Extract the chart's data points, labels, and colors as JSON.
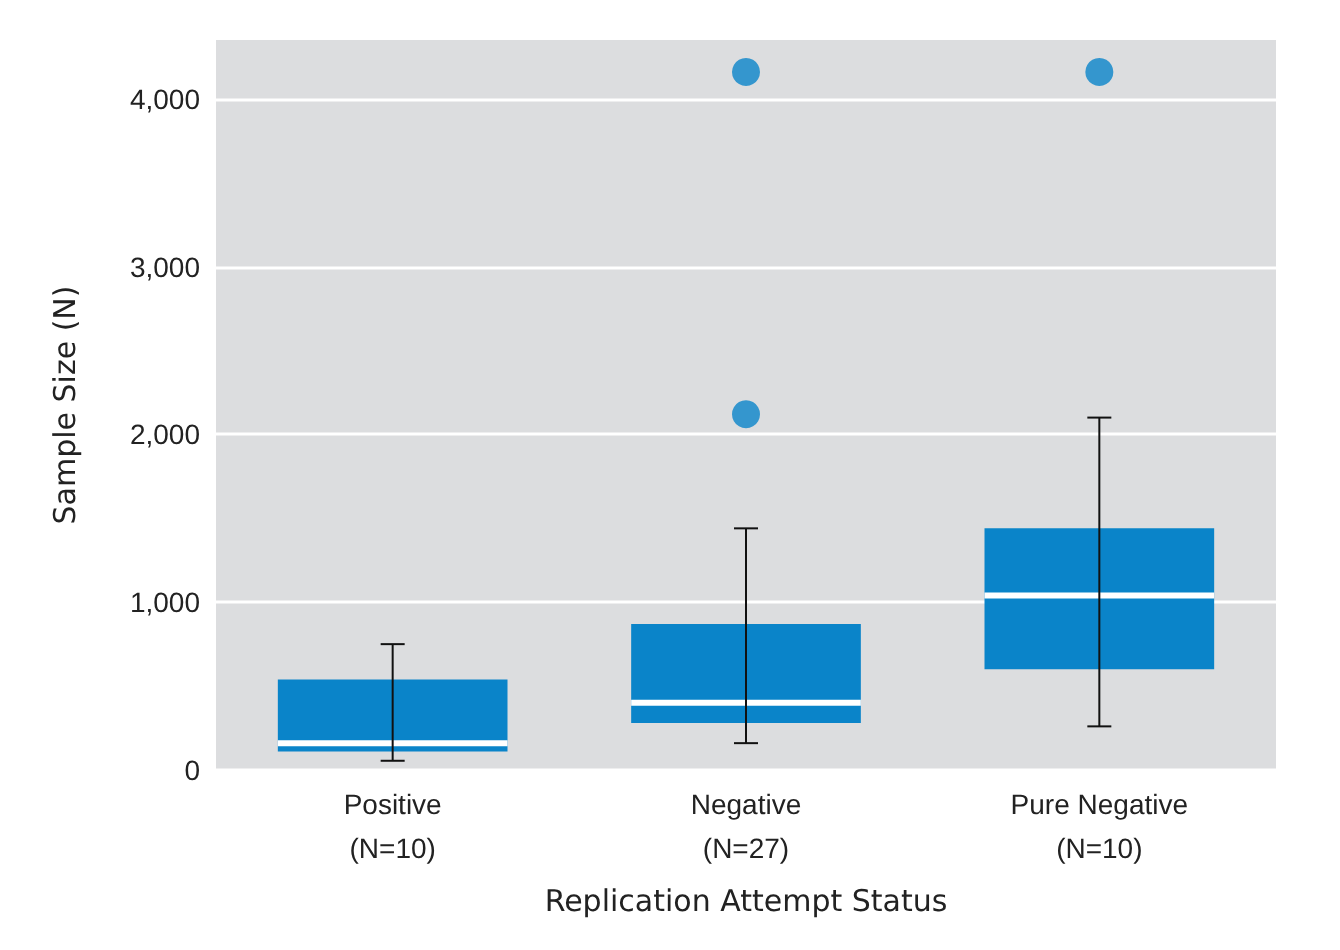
{
  "chart_data": {
    "type": "box",
    "categories": [
      "Positive\n(N=10)",
      "Negative\n(N=27)",
      "Pure Negative\n(N=10)"
    ],
    "xlabel": "Replication Attempt Status",
    "ylabel": "Sample Size (N)",
    "series": [
      {
        "color": "#0a84c9",
        "boxes": [
          {
            "low": 55,
            "q1": 110,
            "median": 160,
            "q3": 540,
            "high": 750
          },
          {
            "low": 160,
            "q1": 280,
            "median": 400,
            "q3": 870,
            "high": 1440,
            "outliers": [
              2120,
              4160
            ]
          },
          {
            "low": 260,
            "q1": 600,
            "median": 1040,
            "q3": 1440,
            "high": 2100,
            "outliers": [
              4160
            ]
          }
        ]
      }
    ],
    "ylim": [
      0,
      4350
    ],
    "yticks": [
      0,
      {
        "value": 1000,
        "label": "1,000"
      },
      {
        "value": 2000,
        "label": "2,000"
      },
      {
        "value": 3000,
        "label": "3,000"
      },
      {
        "value": 4000,
        "label": "4,000"
      }
    ],
    "grid": "y"
  }
}
